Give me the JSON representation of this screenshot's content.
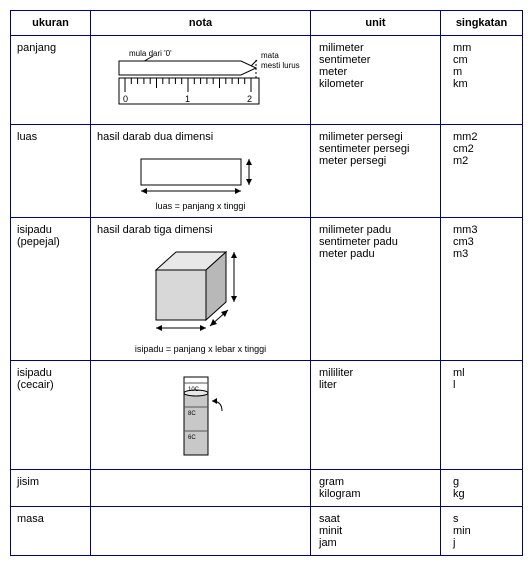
{
  "headers": {
    "c1": "ukuran",
    "c2": "nota",
    "c3": "unit",
    "c4": "singkatan"
  },
  "rows": [
    {
      "ukuran": "panjang",
      "nota_text": "",
      "nota_labels": {
        "a": "mula dari '0'",
        "b": "mata",
        "c": "mesti lurus"
      },
      "diagram": "ruler",
      "caption": "",
      "units": [
        "milimeter",
        "sentimeter",
        "meter",
        "kilometer"
      ],
      "abbr": [
        "mm",
        "cm",
        "m",
        "km"
      ]
    },
    {
      "ukuran": "luas",
      "nota_text": "hasil darab dua dimensi",
      "diagram": "rect",
      "caption": "luas = panjang x tinggi",
      "units": [
        "milimeter persegi",
        "sentimeter persegi",
        "meter persegi"
      ],
      "abbr": [
        "mm2",
        "cm2",
        "m2"
      ]
    },
    {
      "ukuran": "isipadu\n(pepejal)",
      "nota_text": "hasil darab tiga dimensi",
      "diagram": "cube",
      "caption": "isipadu = panjang x lebar x tinggi",
      "units": [
        "milimeter padu",
        "sentimeter padu",
        "meter padu"
      ],
      "abbr": [
        "mm3",
        "cm3",
        "m3"
      ]
    },
    {
      "ukuran": "isipadu\n(cecair)",
      "nota_text": "",
      "diagram": "cylinder",
      "caption": "",
      "units": [
        "mililiter",
        "liter"
      ],
      "abbr": [
        "ml",
        "l"
      ]
    },
    {
      "ukuran": "jisim",
      "nota_text": "",
      "diagram": "",
      "caption": "",
      "units": [
        "gram",
        "kilogram"
      ],
      "abbr": [
        "g",
        "kg"
      ]
    },
    {
      "ukuran": "masa",
      "nota_text": "",
      "diagram": "",
      "caption": "",
      "units": [
        "saat",
        "minit",
        "jam"
      ],
      "abbr": [
        "s",
        "min",
        "j"
      ]
    }
  ],
  "colors": {
    "border": "#000080",
    "text": "#000000",
    "bg": "#ffffff"
  }
}
